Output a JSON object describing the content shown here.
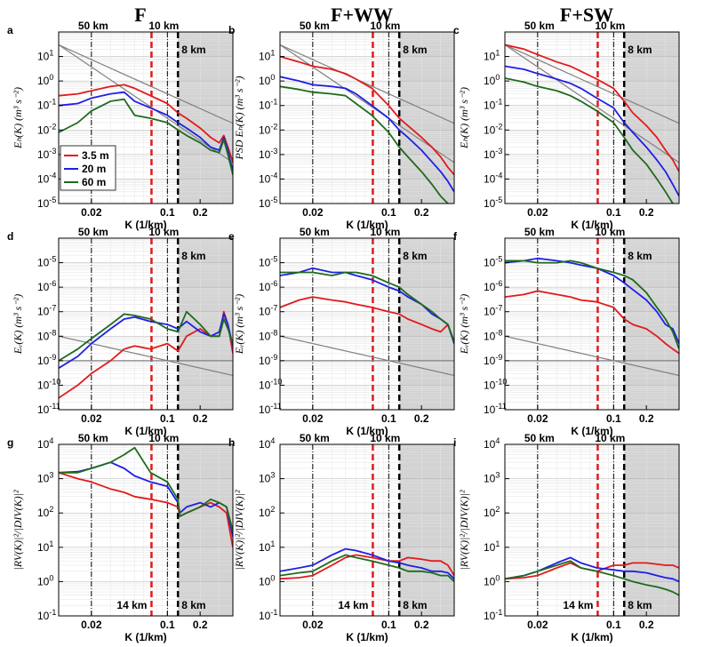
{
  "figure": {
    "column_titles": [
      "F",
      "F+WW",
      "F+SW"
    ],
    "panel_letters": [
      "a",
      "b",
      "c",
      "d",
      "e",
      "f",
      "g",
      "h",
      "i"
    ],
    "xlabel": "K (1/km)",
    "xticks": [
      0.02,
      0.1,
      0.2
    ],
    "xtick_labels": [
      "0.02",
      "0.1",
      "0.2"
    ],
    "xlim": [
      0.01,
      0.4
    ],
    "vlines": [
      {
        "k": 0.02,
        "label": "50 km",
        "style": "dashdot",
        "color": "#000000"
      },
      {
        "k": 0.1,
        "label": "10 km",
        "style": "dashdot",
        "color": "#000000"
      },
      {
        "k": 0.0714,
        "label": "14 km",
        "style": "dashed",
        "color": "#e31a1c"
      },
      {
        "k": 0.125,
        "label": "8 km",
        "style": "dashed",
        "color": "#000000"
      }
    ],
    "shade_from_k": 0.125,
    "legend": [
      {
        "label": "3.5 m",
        "color": "#e31a1c"
      },
      {
        "label": "20 m",
        "color": "#1f1fe6"
      },
      {
        "label": "60 m",
        "color": "#1e6b1e"
      }
    ],
    "colors": {
      "red": "#e31a1c",
      "blue": "#1f1fe6",
      "green": "#1e6b1e",
      "shade": "#d3d3d3",
      "ref": "#808080"
    }
  },
  "chart_data": [
    {
      "panel": "a",
      "type": "line",
      "ylabel": "E_h(K) (m^3 s^-2)",
      "ylim": [
        1e-05,
        100
      ],
      "ytick_exps": [
        -5,
        -4,
        -3,
        -2,
        -1,
        0,
        1
      ],
      "x": [
        0.01,
        0.015,
        0.02,
        0.03,
        0.04,
        0.05,
        0.07,
        0.1,
        0.125,
        0.15,
        0.2,
        0.25,
        0.3,
        0.33,
        0.36,
        0.4
      ],
      "series": [
        {
          "name": "3.5 m",
          "values": [
            0.25,
            0.3,
            0.4,
            0.6,
            0.7,
            0.5,
            0.25,
            0.12,
            0.05,
            0.03,
            0.012,
            0.005,
            0.003,
            0.006,
            0.002,
            0.0005
          ]
        },
        {
          "name": "20 m",
          "values": [
            0.1,
            0.12,
            0.2,
            0.3,
            0.35,
            0.15,
            0.08,
            0.04,
            0.02,
            0.012,
            0.005,
            0.002,
            0.0015,
            0.005,
            0.0015,
            0.0002
          ]
        },
        {
          "name": "60 m",
          "values": [
            0.008,
            0.02,
            0.06,
            0.15,
            0.18,
            0.04,
            0.03,
            0.02,
            0.01,
            0.006,
            0.003,
            0.0015,
            0.0012,
            0.004,
            0.001,
            0.00015
          ]
        }
      ],
      "ref_lines": [
        {
          "label": "K^-2",
          "x": [
            0.01,
            0.4
          ],
          "values": [
            30,
            0.01875
          ]
        },
        {
          "label": "K^-3",
          "x": [
            0.01,
            0.4
          ],
          "values": [
            30,
            0.00046875
          ]
        }
      ],
      "texts": {
        "length_labels": [
          "50 km",
          "10 km",
          "8 km"
        ]
      }
    },
    {
      "panel": "b",
      "type": "line",
      "ylabel": "PSD E_h(K) (m^3 s^-2)",
      "ylim": [
        1e-05,
        100
      ],
      "ytick_exps": [
        -5,
        -4,
        -3,
        -2,
        -1,
        0,
        1
      ],
      "x": [
        0.01,
        0.015,
        0.02,
        0.03,
        0.04,
        0.05,
        0.07,
        0.1,
        0.125,
        0.15,
        0.2,
        0.25,
        0.3,
        0.35,
        0.4
      ],
      "series": [
        {
          "name": "3.5 m",
          "values": [
            10,
            6,
            4,
            3,
            2,
            1.2,
            0.5,
            0.1,
            0.03,
            0.015,
            0.005,
            0.002,
            0.0008,
            0.0003,
            0.00015
          ]
        },
        {
          "name": "20 m",
          "values": [
            1.5,
            1,
            0.7,
            0.6,
            0.5,
            0.3,
            0.1,
            0.03,
            0.01,
            0.005,
            0.0015,
            0.0005,
            0.0002,
            8e-05,
            3e-05
          ]
        },
        {
          "name": "60 m",
          "values": [
            0.6,
            0.45,
            0.35,
            0.3,
            0.25,
            0.12,
            0.04,
            0.008,
            0.002,
            0.0008,
            0.0002,
            6e-05,
            2e-05,
            1e-05,
            5e-06
          ]
        }
      ],
      "ref_lines": [
        {
          "label": "K^-2",
          "x": [
            0.01,
            0.4
          ],
          "values": [
            30,
            0.01875
          ]
        },
        {
          "label": "K^-3",
          "x": [
            0.01,
            0.4
          ],
          "values": [
            30,
            0.00046875
          ]
        }
      ],
      "texts": {
        "length_labels": [
          "50 km",
          "10 km",
          "8 km"
        ]
      }
    },
    {
      "panel": "c",
      "type": "line",
      "ylabel": "E_h(K) (m^3 s^-2)",
      "ylim": [
        1e-05,
        100
      ],
      "ytick_exps": [
        -5,
        -4,
        -3,
        -2,
        -1,
        0,
        1
      ],
      "x": [
        0.01,
        0.015,
        0.02,
        0.03,
        0.04,
        0.05,
        0.07,
        0.1,
        0.125,
        0.15,
        0.2,
        0.25,
        0.3,
        0.35,
        0.4
      ],
      "series": [
        {
          "name": "3.5 m",
          "values": [
            30,
            20,
            12,
            6,
            4,
            2.5,
            1.2,
            0.5,
            0.15,
            0.05,
            0.015,
            0.005,
            0.0015,
            0.0006,
            0.0002
          ]
        },
        {
          "name": "20 m",
          "values": [
            4,
            3,
            2,
            1.2,
            0.8,
            0.5,
            0.2,
            0.08,
            0.02,
            0.008,
            0.002,
            0.0006,
            0.0002,
            6e-05,
            2e-05
          ]
        },
        {
          "name": "60 m",
          "values": [
            1.3,
            0.9,
            0.6,
            0.4,
            0.25,
            0.15,
            0.06,
            0.02,
            0.005,
            0.0015,
            0.0004,
            0.0001,
            3e-05,
            1e-05,
            5e-06
          ]
        }
      ],
      "ref_lines": [
        {
          "label": "K^-2",
          "x": [
            0.01,
            0.4
          ],
          "values": [
            30,
            0.01875
          ]
        },
        {
          "label": "K^-3",
          "x": [
            0.01,
            0.4
          ],
          "values": [
            30,
            0.00046875
          ]
        }
      ],
      "texts": {
        "length_labels": [
          "50 km",
          "10 km",
          "8 km"
        ]
      }
    },
    {
      "panel": "d",
      "type": "line",
      "ylabel": "E_v(K) (m^3 s^-2)",
      "ylim": [
        1e-11,
        0.0001
      ],
      "ytick_exps": [
        -11,
        -10,
        -9,
        -8,
        -7,
        -6,
        -5
      ],
      "x": [
        0.01,
        0.015,
        0.02,
        0.03,
        0.04,
        0.05,
        0.07,
        0.1,
        0.125,
        0.15,
        0.2,
        0.25,
        0.3,
        0.33,
        0.36,
        0.4
      ],
      "series": [
        {
          "name": "3.5 m",
          "values": [
            3e-11,
            1e-10,
            3e-10,
            1e-09,
            3e-09,
            4e-09,
            3e-09,
            5e-09,
            2.5e-09,
            1e-08,
            2e-08,
            1e-08,
            1e-08,
            1e-07,
            3e-08,
            2e-09
          ]
        },
        {
          "name": "20 m",
          "values": [
            5e-10,
            1.5e-09,
            5e-09,
            2e-08,
            5e-08,
            6e-08,
            4e-08,
            3e-08,
            2e-08,
            4e-08,
            1.5e-08,
            1e-08,
            1.5e-08,
            8e-08,
            3e-08,
            4e-09
          ]
        },
        {
          "name": "60 m",
          "values": [
            1e-09,
            3e-09,
            8e-09,
            3e-08,
            8e-08,
            7e-08,
            5e-08,
            2e-08,
            1.5e-08,
            1e-07,
            3e-08,
            1e-08,
            1e-08,
            5e-08,
            2e-08,
            5e-09
          ]
        }
      ],
      "ref_lines": [
        {
          "label": "K^0",
          "x": [
            0.01,
            0.4
          ],
          "values": [
            1e-09,
            1e-09
          ]
        },
        {
          "label": "K^-1",
          "x": [
            0.01,
            0.4
          ],
          "values": [
            1e-08,
            2.5e-10
          ]
        }
      ],
      "texts": {
        "length_labels": [
          "50 km",
          "10 km",
          "8 km"
        ]
      }
    },
    {
      "panel": "e",
      "type": "line",
      "ylabel": "E_v(K) (m^3 s^-2)",
      "ylim": [
        1e-11,
        0.0001
      ],
      "ytick_exps": [
        -11,
        -10,
        -9,
        -8,
        -7,
        -6,
        -5
      ],
      "x": [
        0.01,
        0.015,
        0.02,
        0.03,
        0.04,
        0.05,
        0.07,
        0.1,
        0.125,
        0.15,
        0.2,
        0.25,
        0.3,
        0.35,
        0.4
      ],
      "series": [
        {
          "name": "3.5 m",
          "values": [
            1.5e-07,
            3e-07,
            4e-07,
            3e-07,
            2.5e-07,
            2e-07,
            1.5e-07,
            1e-07,
            8e-08,
            5e-08,
            3e-08,
            2e-08,
            1.5e-08,
            3e-08,
            5e-09
          ]
        },
        {
          "name": "20 m",
          "values": [
            3e-06,
            4e-06,
            6e-06,
            4e-06,
            4e-06,
            3e-06,
            2e-06,
            1e-06,
            7e-07,
            4e-07,
            2e-07,
            8e-08,
            5e-08,
            3e-08,
            5e-09
          ]
        },
        {
          "name": "60 m",
          "values": [
            4e-06,
            4e-06,
            4e-06,
            3e-06,
            4e-06,
            4e-06,
            3e-06,
            1.5e-06,
            1e-06,
            5e-07,
            2e-07,
            1e-07,
            5e-08,
            3e-08,
            6e-09
          ]
        }
      ],
      "ref_lines": [
        {
          "label": "K^0",
          "x": [
            0.01,
            0.4
          ],
          "values": [
            1e-09,
            1e-09
          ]
        },
        {
          "label": "K^-1",
          "x": [
            0.01,
            0.4
          ],
          "values": [
            1e-08,
            2.5e-10
          ]
        }
      ],
      "texts": {
        "length_labels": [
          "50 km",
          "10 km",
          "8 km"
        ]
      }
    },
    {
      "panel": "f",
      "type": "line",
      "ylabel": "E_v(K) (m^3 s^-2)",
      "ylim": [
        1e-11,
        0.0001
      ],
      "ytick_exps": [
        -11,
        -10,
        -9,
        -8,
        -7,
        -6,
        -5
      ],
      "x": [
        0.01,
        0.015,
        0.02,
        0.03,
        0.04,
        0.05,
        0.07,
        0.1,
        0.125,
        0.15,
        0.2,
        0.25,
        0.3,
        0.35,
        0.4
      ],
      "series": [
        {
          "name": "3.5 m",
          "values": [
            4e-07,
            5e-07,
            7e-07,
            5e-07,
            4e-07,
            3e-07,
            2.5e-07,
            1.5e-07,
            5e-08,
            3e-08,
            2e-08,
            1e-08,
            5e-09,
            3e-09,
            2e-09
          ]
        },
        {
          "name": "20 m",
          "values": [
            1e-05,
            1.2e-05,
            1.5e-05,
            1.2e-05,
            1e-05,
            8e-06,
            6e-06,
            3e-06,
            1.5e-06,
            8e-07,
            3e-07,
            1e-07,
            3e-08,
            2e-08,
            5e-09
          ]
        },
        {
          "name": "60 m",
          "values": [
            1.2e-05,
            1.2e-05,
            1e-05,
            1e-05,
            1.2e-05,
            1e-05,
            6e-06,
            4e-06,
            3e-06,
            2e-06,
            6e-07,
            1.5e-07,
            5e-08,
            1.5e-08,
            3e-09
          ]
        }
      ],
      "ref_lines": [
        {
          "label": "K^0",
          "x": [
            0.01,
            0.4
          ],
          "values": [
            1e-09,
            1e-09
          ]
        },
        {
          "label": "K^-1",
          "x": [
            0.01,
            0.4
          ],
          "values": [
            1e-08,
            2.5e-10
          ]
        }
      ],
      "texts": {
        "length_labels": [
          "50 km",
          "10 km",
          "8 km"
        ]
      }
    },
    {
      "panel": "g",
      "type": "line",
      "ylabel": "|RV(K)|^2/|DIV(K)|^2",
      "ylim": [
        0.1,
        10000
      ],
      "ytick_exps": [
        -1,
        0,
        1,
        2,
        3,
        4
      ],
      "x": [
        0.01,
        0.015,
        0.02,
        0.03,
        0.04,
        0.05,
        0.07,
        0.1,
        0.125,
        0.13,
        0.15,
        0.2,
        0.25,
        0.3,
        0.35,
        0.4
      ],
      "series": [
        {
          "name": "3.5 m",
          "values": [
            1500,
            1000,
            800,
            500,
            400,
            300,
            250,
            200,
            150,
            80,
            100,
            150,
            200,
            150,
            100,
            10
          ]
        },
        {
          "name": "20 m",
          "values": [
            1500,
            1600,
            2000,
            3000,
            2000,
            1200,
            800,
            600,
            200,
            100,
            150,
            200,
            150,
            200,
            150,
            20
          ]
        },
        {
          "name": "60 m",
          "values": [
            1500,
            1500,
            2000,
            3000,
            5000,
            8000,
            1500,
            800,
            250,
            80,
            100,
            150,
            250,
            200,
            150,
            30
          ]
        }
      ],
      "ref_lines": [],
      "texts": {
        "length_labels": [
          "50 km",
          "10 km",
          "14 km",
          "8 km"
        ]
      }
    },
    {
      "panel": "h",
      "type": "line",
      "ylabel": "|RV(K)|^2/|DIV(K)|^2",
      "ylim": [
        0.1,
        10000
      ],
      "ytick_exps": [
        -1,
        0,
        1,
        2,
        3,
        4
      ],
      "x": [
        0.01,
        0.015,
        0.02,
        0.03,
        0.04,
        0.05,
        0.07,
        0.1,
        0.125,
        0.15,
        0.2,
        0.25,
        0.3,
        0.35,
        0.4
      ],
      "series": [
        {
          "name": "3.5 m",
          "values": [
            1.2,
            1.3,
            1.5,
            3,
            5,
            6,
            5,
            4,
            4,
            5,
            4.5,
            4,
            4,
            3,
            1.5
          ]
        },
        {
          "name": "20 m",
          "values": [
            2,
            2.5,
            3,
            6,
            9,
            8,
            6,
            4,
            3.5,
            3,
            2.5,
            2,
            2,
            1.8,
            1.2
          ]
        },
        {
          "name": "60 m",
          "values": [
            1.5,
            1.8,
            2,
            4,
            6,
            5,
            4,
            3,
            2.5,
            2,
            2,
            1.8,
            1.5,
            1.5,
            1
          ]
        }
      ],
      "ref_lines": [],
      "texts": {
        "length_labels": [
          "50 km",
          "10 km",
          "14 km",
          "8 km"
        ]
      }
    },
    {
      "panel": "i",
      "type": "line",
      "ylabel": "|RV(K)|^2/|DIV(K)|^2",
      "ylim": [
        0.1,
        10000
      ],
      "ytick_exps": [
        -1,
        0,
        1,
        2,
        3,
        4
      ],
      "x": [
        0.01,
        0.015,
        0.02,
        0.03,
        0.04,
        0.05,
        0.07,
        0.1,
        0.125,
        0.15,
        0.2,
        0.25,
        0.3,
        0.35,
        0.4
      ],
      "series": [
        {
          "name": "3.5 m",
          "values": [
            1.2,
            1.3,
            1.5,
            2.5,
            3.5,
            2.5,
            2,
            3,
            3,
            3.5,
            3.5,
            3.2,
            3,
            3,
            2.5
          ]
        },
        {
          "name": "20 m",
          "values": [
            1.2,
            1.5,
            2,
            3.5,
            5,
            3.5,
            2.5,
            2.2,
            2,
            2,
            1.8,
            1.5,
            1.3,
            1.2,
            1
          ]
        },
        {
          "name": "60 m",
          "values": [
            1.2,
            1.5,
            2,
            3,
            4,
            2.5,
            2,
            1.5,
            1.2,
            1,
            0.8,
            0.7,
            0.6,
            0.5,
            0.4
          ]
        }
      ],
      "ref_lines": [],
      "texts": {
        "length_labels": [
          "50 km",
          "10 km",
          "14 km",
          "8 km"
        ]
      }
    }
  ]
}
